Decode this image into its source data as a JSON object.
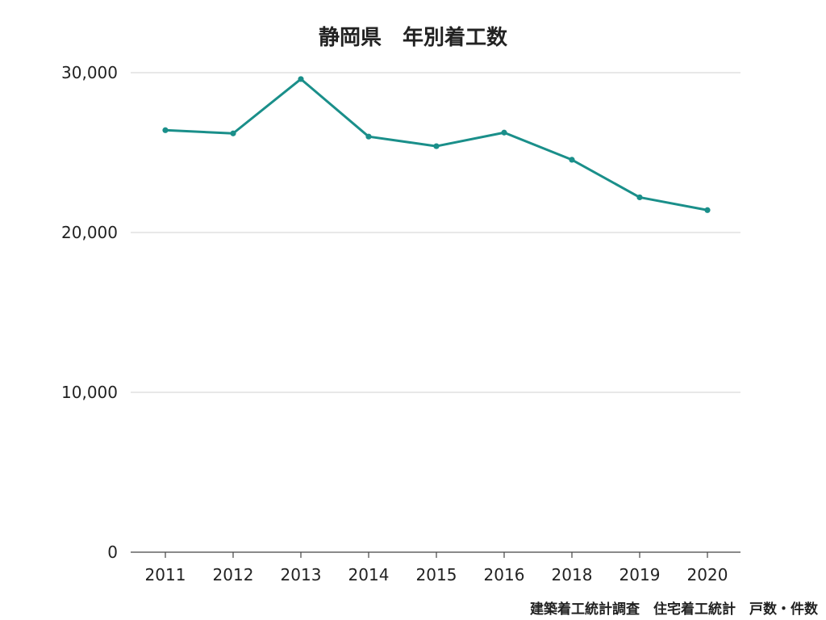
{
  "chart_data": {
    "type": "line",
    "title": "静岡県　年別着工数",
    "categories": [
      "2011",
      "2012",
      "2013",
      "2014",
      "2015",
      "2016",
      "2018",
      "2019",
      "2020"
    ],
    "series": [
      {
        "values": [
          26400,
          26200,
          29600,
          26000,
          25400,
          26250,
          24550,
          22200,
          21400
        ]
      }
    ],
    "ylim": [
      0,
      30000
    ],
    "yticks": [
      {
        "value": 0,
        "label": "0"
      },
      {
        "value": 10000,
        "label": "10,000"
      },
      {
        "value": 20000,
        "label": "20,000"
      },
      {
        "value": 30000,
        "label": "30,000"
      }
    ],
    "grid": true,
    "legend": "none",
    "line_color": "#1a8f8a",
    "grid_color": "#d0d0d0"
  },
  "source_note": "建築着工統計調査　住宅着工統計　戸数・件数"
}
